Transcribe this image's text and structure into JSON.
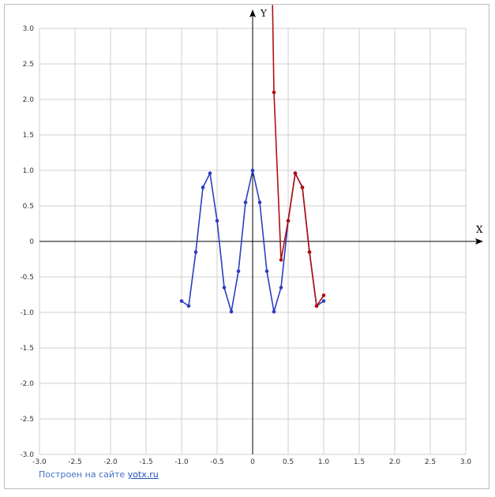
{
  "footer": {
    "prefix": "Построен на сайте",
    "link": "yotx.ru"
  },
  "chart_data": {
    "type": "line",
    "title": "",
    "xlabel": "X",
    "ylabel": "Y",
    "xlim": [
      -3,
      3
    ],
    "ylim": [
      -3,
      3
    ],
    "grid": true,
    "x_ticks": [
      "-3.0",
      "-2.5",
      "-2.0",
      "-1.5",
      "-1.0",
      "-0.5",
      "0",
      "0.5",
      "1.0",
      "1.5",
      "2.0",
      "2.5",
      "3.0"
    ],
    "y_ticks": [
      "3.0",
      "2.5",
      "2.0",
      "1.5",
      "1.0",
      "0.5",
      "0",
      "-0.5",
      "-1.0",
      "-1.5",
      "-2.0",
      "-2.5",
      "-3.0"
    ],
    "series": [
      {
        "color": "#2b3fbf",
        "x": [
          -1.0,
          -0.9,
          -0.8,
          -0.7,
          -0.6,
          -0.5,
          -0.4,
          -0.3,
          -0.2,
          -0.1,
          0.0,
          0.1,
          0.2,
          0.3,
          0.4,
          0.5,
          0.6,
          0.7,
          0.8,
          0.9,
          1.0
        ],
        "y": [
          -0.84,
          -0.91,
          -0.15,
          0.76,
          0.96,
          0.29,
          -0.65,
          -0.99,
          -0.42,
          0.55,
          1.0,
          0.55,
          -0.42,
          -0.99,
          -0.65,
          0.29,
          0.96,
          0.76,
          -0.15,
          -0.91,
          -0.84
        ]
      },
      {
        "color": "#b01010",
        "x": [
          0.3,
          0.4,
          0.5,
          0.6,
          0.7,
          0.8,
          0.9,
          1.0
        ],
        "y": [
          2.1,
          -0.26,
          0.29,
          0.96,
          0.76,
          -0.15,
          -0.91,
          -0.76
        ],
        "lead_in": [
          [
            0.28,
            3.33
          ],
          [
            0.3,
            2.1
          ]
        ]
      }
    ]
  }
}
